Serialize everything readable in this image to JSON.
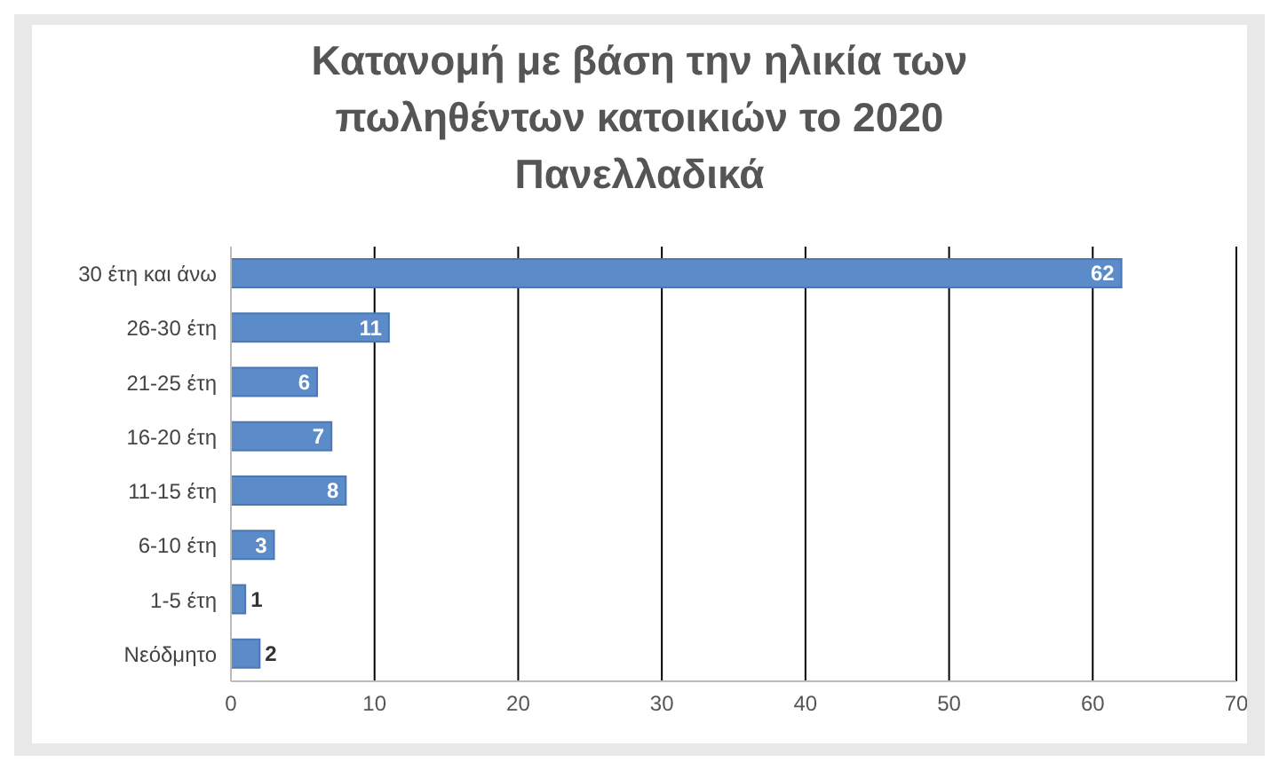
{
  "chart_data": {
    "type": "bar",
    "orientation": "horizontal",
    "title": "Κατανομή με βάση την ηλικία των πωληθέντων κατοικιών το 2020 Πανελλαδικά",
    "categories": [
      "30 έτη και άνω",
      "26-30 έτη",
      "21-25 έτη",
      "16-20 έτη",
      "11-15 έτη",
      "6-10 έτη",
      "1-5 έτη",
      "Νεόδμητο"
    ],
    "values": [
      62,
      11,
      6,
      7,
      8,
      3,
      1,
      2
    ],
    "color": "#5b8bc9",
    "xlim": [
      0,
      70
    ],
    "xticks": [
      0,
      10,
      20,
      30,
      40,
      50,
      60,
      70
    ],
    "grid": "x",
    "data_labels": true
  }
}
